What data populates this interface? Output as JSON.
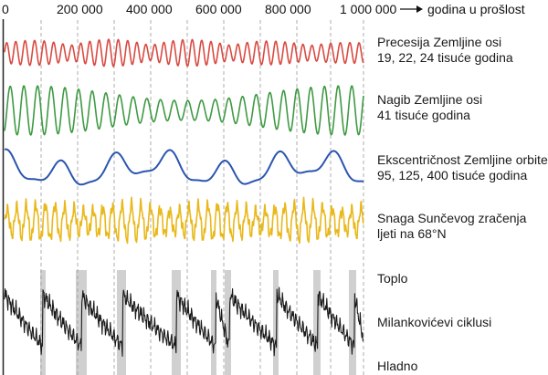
{
  "axis": {
    "ticks": [
      "0",
      "200 000",
      "400 000",
      "600 000",
      "800 000",
      "1 000 000"
    ],
    "direction_label": "godina u prošlost"
  },
  "cycles": [
    {
      "id": "precession",
      "color": "#d94a42",
      "label_line1": "Precesija Zemljine osi",
      "label_line2": "19, 22, 24 tisuće godina"
    },
    {
      "id": "obliquity",
      "color": "#3e9a42",
      "label_line1": "Nagib Zemljine osi",
      "label_line2": "41 tisuće godina"
    },
    {
      "id": "eccentricity",
      "color": "#2a55b0",
      "label_line1": "Ekscentričnost Zemljine orbite",
      "label_line2": "95, 125, 400 tisuće godina"
    },
    {
      "id": "insolation",
      "color": "#e9b81a",
      "label_line1": "Snaga Sunčevog zračenja",
      "label_line2": "ljeti na 68°N"
    }
  ],
  "climate": {
    "color": "#1a1a1a",
    "band_color": "#d0d0d0",
    "warm_label": "Toplo",
    "warm_color": "#d23b32",
    "cold_label": "Hladno",
    "cold_color": "#1aa3d8",
    "main_label": "Milankovićevi ciklusi"
  }
}
